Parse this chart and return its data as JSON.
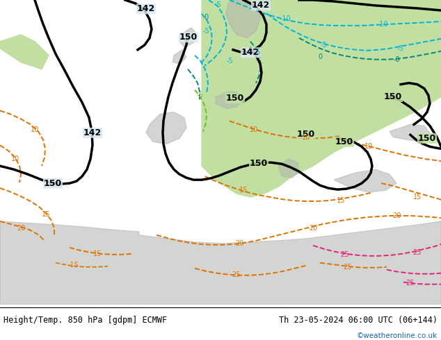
{
  "title_left": "Height/Temp. 850 hPa [gdpm] ECMWF",
  "title_right": "Th 23-05-2024 06:00 UTC (06+144)",
  "credit": "©weatheronline.co.uk",
  "bg_color": "#ffffff",
  "credit_color": "#1565c0",
  "map_cold_color": "#d8e8f0",
  "map_warm_color": "#c8e6a0",
  "map_hot_color": "#e8e8a0",
  "terrain_color": "#b8b8b8",
  "sea_color": "#d0e8f8",
  "figsize": [
    6.34,
    4.9
  ],
  "dpi": 100
}
